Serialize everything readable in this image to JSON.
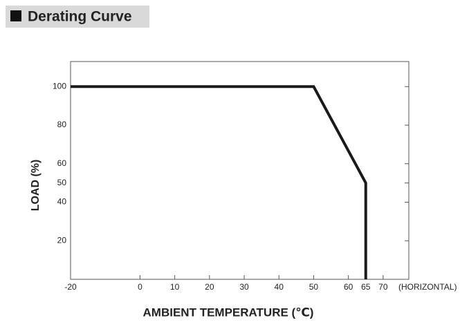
{
  "chart_data": {
    "type": "line",
    "title": "Derating Curve",
    "x_label": "AMBIENT TEMPERATURE (℃)",
    "y_label": "LOAD (%)",
    "x_note": "(HORIZONTAL)",
    "x": [
      -20,
      50,
      65,
      65
    ],
    "values": [
      100,
      100,
      50,
      0
    ],
    "color": "#1a1a1a",
    "xlim": [
      -20,
      77.4
    ],
    "ylim": [
      0,
      113
    ],
    "xticks": [
      -20,
      0,
      10,
      20,
      30,
      40,
      50,
      60,
      65,
      70
    ],
    "yticks": [
      20,
      40,
      50,
      60,
      80,
      100
    ]
  }
}
